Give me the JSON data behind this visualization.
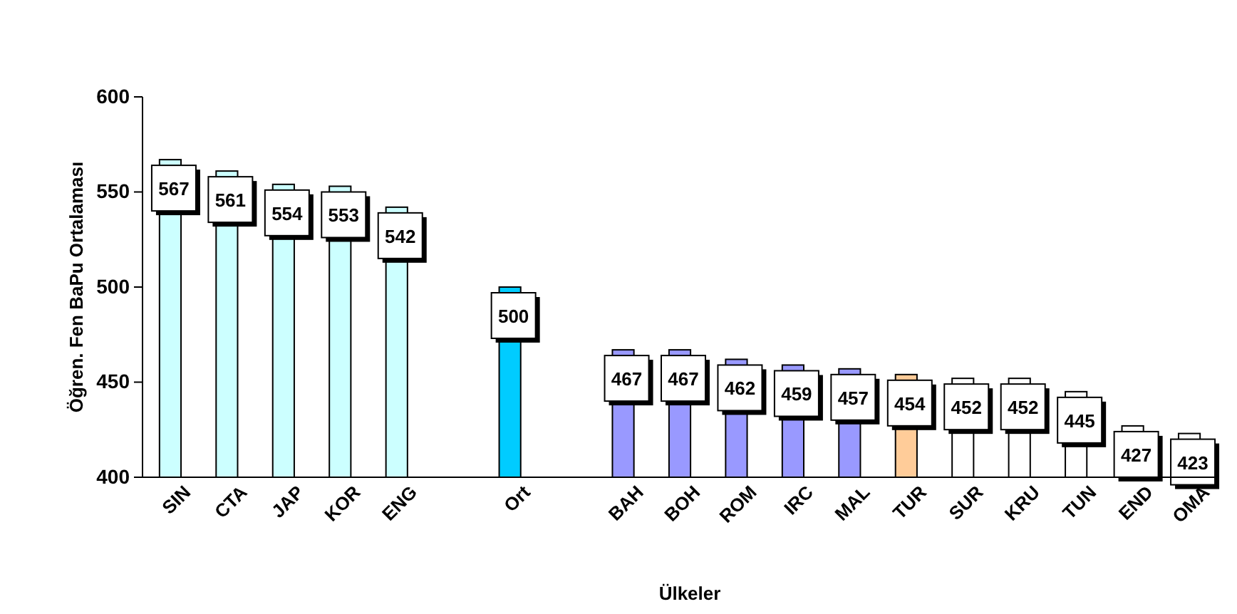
{
  "chart_data": {
    "type": "bar",
    "xlabel": "Ülkeler",
    "ylabel": "Öğren. Fen BaPu Ortalaması",
    "categories": [
      "SIN",
      "CTA",
      "JAP",
      "KOR",
      "ENG",
      null,
      "Ort",
      null,
      "BAH",
      "BOH",
      "ROM",
      "IRC",
      "MAL",
      "TUR",
      "SUR",
      "KRU",
      "TUN",
      "END",
      "OMA"
    ],
    "values": [
      567,
      561,
      554,
      553,
      542,
      null,
      500,
      null,
      467,
      467,
      462,
      459,
      457,
      454,
      452,
      452,
      445,
      427,
      423
    ],
    "colors": [
      "#ccffff",
      "#ccffff",
      "#ccffff",
      "#ccffff",
      "#ccffff",
      null,
      "#00ccff",
      null,
      "#9999ff",
      "#9999ff",
      "#9999ff",
      "#9999ff",
      "#9999ff",
      "#ffcc99",
      "#ffffff",
      "#ffffff",
      "#ffffff",
      "#ffffff",
      "#ffffff"
    ],
    "ylim": [
      400,
      600
    ],
    "yticks": [
      400,
      450,
      500,
      550,
      600
    ],
    "data_labels": true
  }
}
